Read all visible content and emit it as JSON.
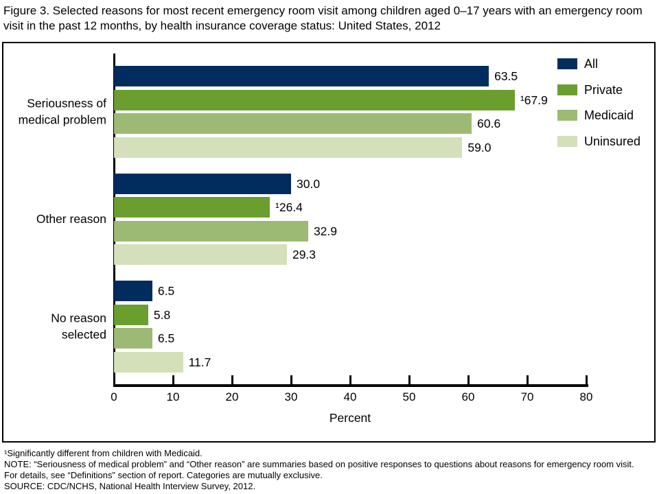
{
  "title": "Figure 3. Selected reasons for most recent emergency room visit among children aged 0–17 years with an emergency room visit in the past 12 months, by health insurance coverage status: United States, 2012",
  "chart_data": {
    "type": "bar",
    "orientation": "horizontal",
    "categories": [
      "Seriousness of\nmedical problem",
      "Other reason",
      "No reason\nselected"
    ],
    "series": [
      {
        "name": "All",
        "color": "#012d5e",
        "values": [
          63.5,
          30.0,
          6.5
        ],
        "value_labels": [
          "63.5",
          "30.0",
          "6.5"
        ]
      },
      {
        "name": "Private",
        "color": "#6a9e2e",
        "values": [
          67.9,
          26.4,
          5.8
        ],
        "value_labels": [
          "¹67.9",
          "¹26.4",
          "5.8"
        ]
      },
      {
        "name": "Medicaid",
        "color": "#9cba74",
        "values": [
          60.6,
          32.9,
          6.5
        ],
        "value_labels": [
          "60.6",
          "32.9",
          "6.5"
        ]
      },
      {
        "name": "Uninsured",
        "color": "#d3e0ba",
        "values": [
          59.0,
          29.3,
          11.7
        ],
        "value_labels": [
          "59.0",
          "29.3",
          "11.7"
        ]
      }
    ],
    "xlabel": "Percent",
    "xlim": [
      0,
      80
    ],
    "xticks": [
      0,
      10,
      20,
      30,
      40,
      50,
      60,
      70,
      80
    ],
    "legend_position": "top-right",
    "grid": false
  },
  "footnotes": [
    "¹Significantly different from children with Medicaid.",
    "NOTE: “Seriousness of medical problem” and “Other reason” are summaries based on positive responses to questions about reasons for emergency room visit.",
    "For details, see “Definitions” section of report. Categories are mutually exclusive.",
    "SOURCE: CDC/NCHS, National Health Interview Survey, 2012."
  ]
}
